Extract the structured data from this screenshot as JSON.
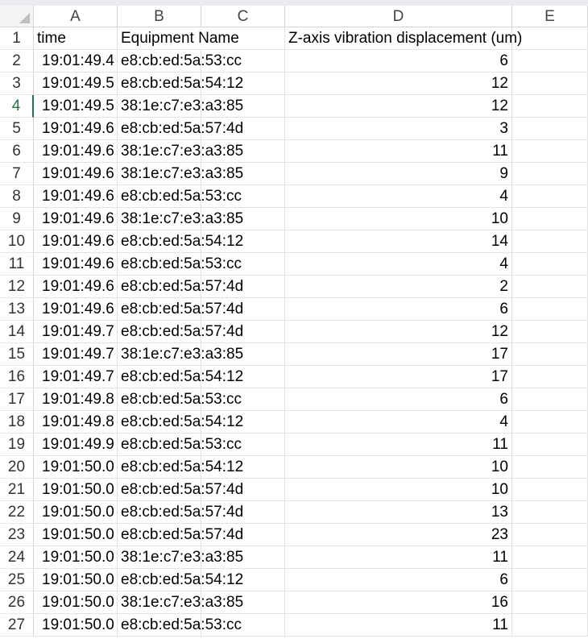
{
  "columns": [
    "A",
    "B",
    "C",
    "D",
    "E"
  ],
  "header_row": {
    "row_number": "1",
    "time": "time",
    "equipment_name": "Equipment Name",
    "z_axis": "Z-axis vibration displacement (um)"
  },
  "rows": [
    {
      "n": "2",
      "time": "19:01:49.4",
      "equipment": "e8:cb:ed:5a:53:cc",
      "z": "6"
    },
    {
      "n": "3",
      "time": "19:01:49.5",
      "equipment": "e8:cb:ed:5a:54:12",
      "z": "12"
    },
    {
      "n": "4",
      "time": "19:01:49.5",
      "equipment": "38:1e:c7:e3:a3:85",
      "z": "12"
    },
    {
      "n": "5",
      "time": "19:01:49.6",
      "equipment": "e8:cb:ed:5a:57:4d",
      "z": "3"
    },
    {
      "n": "6",
      "time": "19:01:49.6",
      "equipment": "38:1e:c7:e3:a3:85",
      "z": "11"
    },
    {
      "n": "7",
      "time": "19:01:49.6",
      "equipment": "38:1e:c7:e3:a3:85",
      "z": "9"
    },
    {
      "n": "8",
      "time": "19:01:49.6",
      "equipment": "e8:cb:ed:5a:53:cc",
      "z": "4"
    },
    {
      "n": "9",
      "time": "19:01:49.6",
      "equipment": "38:1e:c7:e3:a3:85",
      "z": "10"
    },
    {
      "n": "10",
      "time": "19:01:49.6",
      "equipment": "e8:cb:ed:5a:54:12",
      "z": "14"
    },
    {
      "n": "11",
      "time": "19:01:49.6",
      "equipment": "e8:cb:ed:5a:53:cc",
      "z": "4"
    },
    {
      "n": "12",
      "time": "19:01:49.6",
      "equipment": "e8:cb:ed:5a:57:4d",
      "z": "2"
    },
    {
      "n": "13",
      "time": "19:01:49.6",
      "equipment": "e8:cb:ed:5a:57:4d",
      "z": "6"
    },
    {
      "n": "14",
      "time": "19:01:49.7",
      "equipment": "e8:cb:ed:5a:57:4d",
      "z": "12"
    },
    {
      "n": "15",
      "time": "19:01:49.7",
      "equipment": "38:1e:c7:e3:a3:85",
      "z": "17"
    },
    {
      "n": "16",
      "time": "19:01:49.7",
      "equipment": "e8:cb:ed:5a:54:12",
      "z": "17"
    },
    {
      "n": "17",
      "time": "19:01:49.8",
      "equipment": "e8:cb:ed:5a:53:cc",
      "z": "6"
    },
    {
      "n": "18",
      "time": "19:01:49.8",
      "equipment": "e8:cb:ed:5a:54:12",
      "z": "4"
    },
    {
      "n": "19",
      "time": "19:01:49.9",
      "equipment": "e8:cb:ed:5a:53:cc",
      "z": "11"
    },
    {
      "n": "20",
      "time": "19:01:50.0",
      "equipment": "e8:cb:ed:5a:54:12",
      "z": "10"
    },
    {
      "n": "21",
      "time": "19:01:50.0",
      "equipment": "e8:cb:ed:5a:57:4d",
      "z": "10"
    },
    {
      "n": "22",
      "time": "19:01:50.0",
      "equipment": "e8:cb:ed:5a:57:4d",
      "z": "13"
    },
    {
      "n": "23",
      "time": "19:01:50.0",
      "equipment": "e8:cb:ed:5a:57:4d",
      "z": "23"
    },
    {
      "n": "24",
      "time": "19:01:50.0",
      "equipment": "38:1e:c7:e3:a3:85",
      "z": "11"
    },
    {
      "n": "25",
      "time": "19:01:50.0",
      "equipment": "e8:cb:ed:5a:54:12",
      "z": "6"
    },
    {
      "n": "26",
      "time": "19:01:50.0",
      "equipment": "38:1e:c7:e3:a3:85",
      "z": "16"
    },
    {
      "n": "27",
      "time": "19:01:50.0",
      "equipment": "e8:cb:ed:5a:53:cc",
      "z": "11"
    }
  ],
  "selected_row": "4",
  "colors": {
    "selection_accent": "#217346",
    "gridline": "#e1e1e1",
    "header_border": "#d4d4d4"
  }
}
